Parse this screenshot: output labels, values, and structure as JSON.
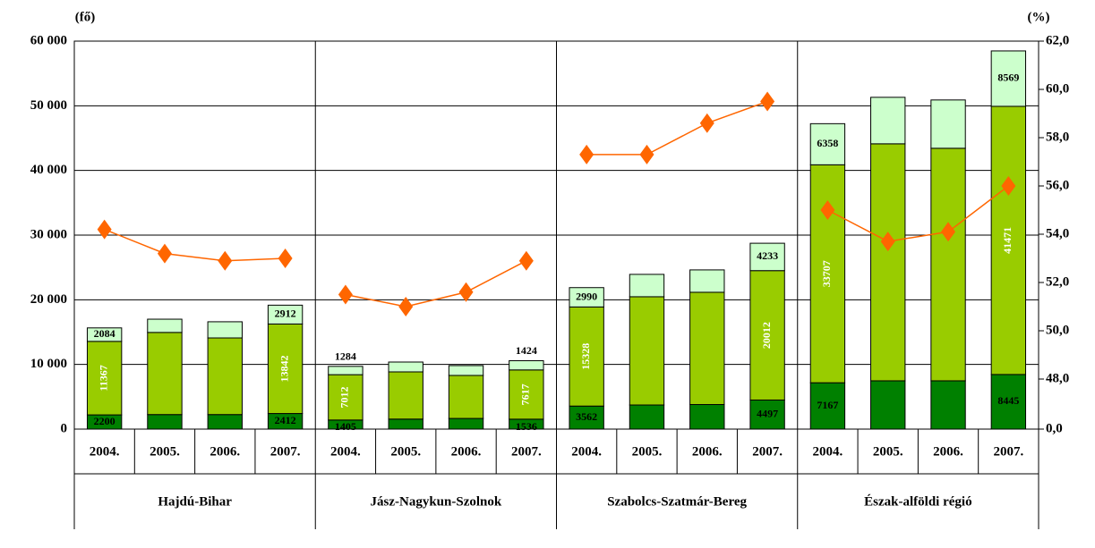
{
  "chart_data": {
    "type": "bar",
    "stacked": true,
    "y_label": "(fő)",
    "y2_label": "(%)",
    "categories": [
      "2004.",
      "2005.",
      "2006.",
      "2007.",
      "2004.",
      "2005.",
      "2006.",
      "2007.",
      "2004.",
      "2005.",
      "2006.",
      "2007.",
      "2004.",
      "2005.",
      "2006.",
      "2007."
    ],
    "groups": [
      "Hajdú-Bihar",
      "Jász-Nagykun-Szolnok",
      "Szabolcs-Szatmár-Bereg",
      "Észak-alföldi régió"
    ],
    "ylim": [
      0,
      60000
    ],
    "yticks": [
      {
        "value": 0,
        "label": "0"
      },
      {
        "value": 10000,
        "label": "10 000"
      },
      {
        "value": 20000,
        "label": "20 000"
      },
      {
        "value": 30000,
        "label": "30 000"
      },
      {
        "value": 40000,
        "label": "40 000"
      },
      {
        "value": 50000,
        "label": "50 000"
      },
      {
        "value": 60000,
        "label": "60 000"
      }
    ],
    "y2lim": [
      0,
      62
    ],
    "y2break": [
      0,
      48
    ],
    "y2ticks": [
      {
        "value": 0,
        "label": "0,0"
      },
      {
        "value": 48,
        "label": "48,0"
      },
      {
        "value": 50,
        "label": "50,0"
      },
      {
        "value": 52,
        "label": "52,0"
      },
      {
        "value": 54,
        "label": "54,0"
      },
      {
        "value": 56,
        "label": "56,0"
      },
      {
        "value": 58,
        "label": "58,0"
      },
      {
        "value": 60,
        "label": "60,0"
      },
      {
        "value": 62,
        "label": "62,0"
      }
    ],
    "grid": true,
    "series": [
      {
        "color": "#008000",
        "label_color": "#000000",
        "values": [
          2200,
          2250,
          2250,
          2412,
          1405,
          1550,
          1650,
          1536,
          3562,
          3730,
          3800,
          4497,
          7167,
          7470,
          7470,
          8445
        ],
        "value_labels": [
          "2200",
          null,
          null,
          "2412",
          "1405",
          null,
          null,
          "1536",
          "3562",
          null,
          null,
          "4497",
          "7167",
          null,
          null,
          "8445"
        ]
      },
      {
        "color": "#99cc00",
        "label_color": "#ffffff",
        "label_rotate": true,
        "values": [
          11367,
          12700,
          11850,
          13842,
          7012,
          7300,
          6650,
          7617,
          15328,
          16740,
          17360,
          20012,
          33707,
          36650,
          35960,
          41471
        ],
        "value_labels": [
          "11367",
          null,
          null,
          "13842",
          "7012",
          null,
          null,
          "7617",
          "15328",
          null,
          null,
          "20012",
          "33707",
          null,
          null,
          "41471"
        ]
      },
      {
        "color": "#ccffcc",
        "label_color": "#000000",
        "values": [
          2084,
          2050,
          2500,
          2912,
          1284,
          1520,
          1520,
          1424,
          2990,
          3460,
          3460,
          4233,
          6358,
          7190,
          7470,
          8569
        ],
        "value_labels": [
          "2084",
          null,
          null,
          "2912",
          "1284",
          null,
          null,
          "1424",
          "2990",
          null,
          null,
          "4233",
          "6358",
          null,
          null,
          "8569"
        ]
      },
      {
        "type": "line",
        "axis": "y2",
        "color": "#ff6600",
        "values": [
          54.2,
          53.2,
          52.9,
          53.0,
          51.5,
          51.0,
          51.6,
          52.9,
          57.3,
          57.3,
          58.6,
          59.5,
          55.0,
          53.7,
          54.1,
          56.0
        ]
      }
    ]
  }
}
